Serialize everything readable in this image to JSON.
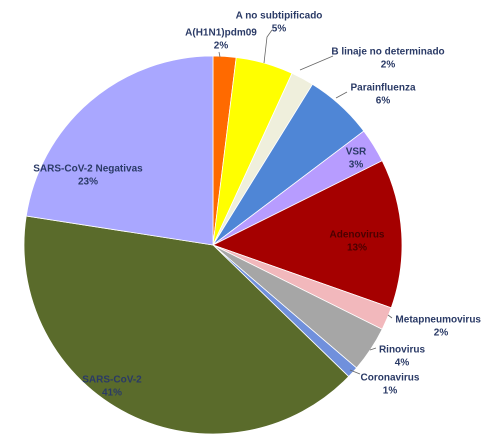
{
  "chart_data": {
    "type": "pie",
    "categories": [
      "A(H1N1)pdm09",
      "A no subtipificado",
      "B linaje no determinado",
      "Parainfluenza",
      "VSR",
      "Adenovirus",
      "Metapneumovirus",
      "Rinovirus",
      "Coronavirus",
      "SARS-CoV-2",
      "SARS-CoV-2  Negativas"
    ],
    "values": [
      2,
      5,
      2,
      6,
      3,
      13,
      2,
      4,
      1,
      41,
      23
    ],
    "value_labels": [
      "2%",
      "5%",
      "2%",
      "6%",
      "3%",
      "13%",
      "2%",
      "4%",
      "1%",
      "41%",
      "23%"
    ],
    "colors": [
      "#ff6a00",
      "#ffff00",
      "#efefdc",
      "#4f86d6",
      "#b79cff",
      "#a50000",
      "#f2b8bc",
      "#a6a6a6",
      "#7090dc",
      "#5a6b2b",
      "#a9a7ff"
    ]
  }
}
